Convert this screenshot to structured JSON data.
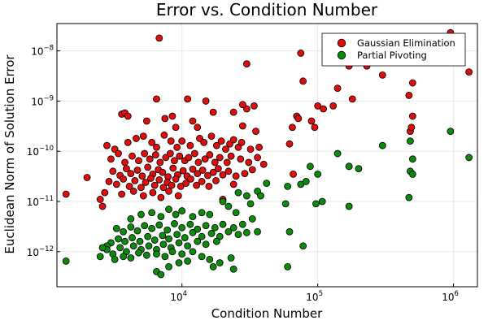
{
  "chart_data": {
    "type": "scatter",
    "title": "Error vs. Condition Number",
    "xlabel": "Condition Number",
    "ylabel": "Euclidean Norm of Solution Error",
    "xscale": "log",
    "yscale": "log",
    "xlim": [
      1200,
      1500000
    ],
    "ylim": [
      2e-13,
      3.5e-08
    ],
    "grid": true,
    "legend_position": "top-right",
    "x_ticks": [
      {
        "value": 10000,
        "base": "10",
        "exp": "4"
      },
      {
        "value": 100000,
        "base": "10",
        "exp": "5"
      },
      {
        "value": 1000000,
        "base": "10",
        "exp": "6"
      }
    ],
    "y_ticks": [
      {
        "value": 1e-12,
        "base": "10",
        "exp": "−12"
      },
      {
        "value": 1e-11,
        "base": "10",
        "exp": "−11"
      },
      {
        "value": 1e-10,
        "base": "10",
        "exp": "−10"
      },
      {
        "value": 1e-09,
        "base": "10",
        "exp": "−9"
      },
      {
        "value": 1e-08,
        "base": "10",
        "exp": "−8"
      }
    ],
    "series": [
      {
        "name": "Gaussian Elimination",
        "color": "#e00d0d",
        "points": [
          [
            6800,
            1.8e-08
          ],
          [
            30000,
            5.5e-09
          ],
          [
            75000,
            9e-09
          ],
          [
            78000,
            2.5e-09
          ],
          [
            170000,
            5e-09
          ],
          [
            230000,
            5e-09
          ],
          [
            520000,
            6e-09
          ],
          [
            950000,
            2.3e-08
          ],
          [
            1300000,
            3.8e-09
          ],
          [
            300000,
            3.3e-09
          ],
          [
            500000,
            2.3e-09
          ],
          [
            140000,
            1.8e-09
          ],
          [
            470000,
            1.3e-09
          ],
          [
            6500,
            1.1e-09
          ],
          [
            11000,
            1.1e-09
          ],
          [
            15000,
            1e-09
          ],
          [
            34000,
            8e-10
          ],
          [
            30000,
            7e-10
          ],
          [
            24000,
            6e-10
          ],
          [
            28000,
            8.5e-10
          ],
          [
            17000,
            6e-10
          ],
          [
            100000,
            8e-10
          ],
          [
            110000,
            7e-10
          ],
          [
            130000,
            8e-10
          ],
          [
            180000,
            1.1e-09
          ],
          [
            3600,
            5.5e-10
          ],
          [
            3800,
            5.8e-10
          ],
          [
            4000,
            5e-10
          ],
          [
            7500,
            4.5e-10
          ],
          [
            8500,
            5e-10
          ],
          [
            5500,
            4e-10
          ],
          [
            12000,
            4e-10
          ],
          [
            9000,
            3e-10
          ],
          [
            13000,
            3e-10
          ],
          [
            28000,
            3.2e-10
          ],
          [
            35000,
            2.5e-10
          ],
          [
            70000,
            5e-10
          ],
          [
            72000,
            4.5e-10
          ],
          [
            65000,
            3e-10
          ],
          [
            90000,
            4e-10
          ],
          [
            95000,
            3e-10
          ],
          [
            500000,
            5e-10
          ],
          [
            480000,
            2.5e-10
          ],
          [
            490000,
            3e-10
          ],
          [
            2800,
            1.3e-10
          ],
          [
            3200,
            1.1e-10
          ],
          [
            4000,
            1.5e-10
          ],
          [
            4600,
            1.8e-10
          ],
          [
            5200,
            2e-10
          ],
          [
            6000,
            1.5e-10
          ],
          [
            6500,
            1.2e-10
          ],
          [
            7400,
            2.1e-10
          ],
          [
            8300,
            1.6e-10
          ],
          [
            9200,
            1.2e-10
          ],
          [
            10000,
            1.6e-10
          ],
          [
            11500,
            1.3e-10
          ],
          [
            13500,
            1.8e-10
          ],
          [
            14500,
            1.5e-10
          ],
          [
            16500,
            2e-10
          ],
          [
            18000,
            1.3e-10
          ],
          [
            19500,
            1.6e-10
          ],
          [
            21000,
            1.1e-10
          ],
          [
            22500,
            1.4e-10
          ],
          [
            24000,
            1.7e-10
          ],
          [
            26000,
            1.2e-10
          ],
          [
            27500,
            1.5e-10
          ],
          [
            32000,
            1.1e-10
          ],
          [
            37000,
            1.2e-10
          ],
          [
            62000,
            1.4e-10
          ],
          [
            3000,
            7e-11
          ],
          [
            3400,
            9e-11
          ],
          [
            3800,
            6e-11
          ],
          [
            4300,
            8e-11
          ],
          [
            4800,
            6.5e-11
          ],
          [
            5300,
            9e-11
          ],
          [
            5800,
            7e-11
          ],
          [
            6400,
            8.5e-11
          ],
          [
            6900,
            6e-11
          ],
          [
            7600,
            7.5e-11
          ],
          [
            8200,
            9e-11
          ],
          [
            8800,
            6.5e-11
          ],
          [
            9600,
            8e-11
          ],
          [
            10500,
            6.5e-11
          ],
          [
            11200,
            7.5e-11
          ],
          [
            12400,
            9e-11
          ],
          [
            13200,
            6e-11
          ],
          [
            14800,
            7e-11
          ],
          [
            16000,
            8.5e-11
          ],
          [
            17500,
            6e-11
          ],
          [
            19000,
            7.5e-11
          ],
          [
            21500,
            6e-11
          ],
          [
            23000,
            8e-11
          ],
          [
            27000,
            7e-11
          ],
          [
            31000,
            6e-11
          ],
          [
            36000,
            7.5e-11
          ],
          [
            40000,
            5.5e-11
          ],
          [
            66000,
            3.5e-11
          ],
          [
            170000,
            5e-11
          ],
          [
            3100,
            4e-11
          ],
          [
            3500,
            3.3e-11
          ],
          [
            3900,
            4.5e-11
          ],
          [
            4200,
            3.6e-11
          ],
          [
            4700,
            4.2e-11
          ],
          [
            5100,
            3.2e-11
          ],
          [
            5600,
            4.8e-11
          ],
          [
            6100,
            3.5e-11
          ],
          [
            6700,
            4.3e-11
          ],
          [
            7200,
            3.8e-11
          ],
          [
            7900,
            3.1e-11
          ],
          [
            8600,
            4.6e-11
          ],
          [
            9300,
            3.4e-11
          ],
          [
            10200,
            4.1e-11
          ],
          [
            10900,
            3.2e-11
          ],
          [
            12000,
            4.4e-11
          ],
          [
            13000,
            3.6e-11
          ],
          [
            14200,
            4.2e-11
          ],
          [
            15500,
            3.3e-11
          ],
          [
            17000,
            3.8e-11
          ],
          [
            18500,
            4.5e-11
          ],
          [
            20000,
            3.4e-11
          ],
          [
            22000,
            4e-11
          ],
          [
            25000,
            3.2e-11
          ],
          [
            29000,
            3.6e-11
          ],
          [
            33000,
            4.3e-11
          ],
          [
            2900,
            2.5e-11
          ],
          [
            3300,
            2.2e-11
          ],
          [
            3700,
            2.8e-11
          ],
          [
            4100,
            2e-11
          ],
          [
            4500,
            2.6e-11
          ],
          [
            5000,
            1.9e-11
          ],
          [
            5400,
            2.4e-11
          ],
          [
            5900,
            2.9e-11
          ],
          [
            6300,
            2.1e-11
          ],
          [
            6800,
            2.7e-11
          ],
          [
            7300,
            1.9e-11
          ],
          [
            7800,
            2.4e-11
          ],
          [
            8400,
            2.1e-11
          ],
          [
            9000,
            2.8e-11
          ],
          [
            9800,
            2e-11
          ],
          [
            10700,
            2.3e-11
          ],
          [
            11600,
            2.8e-11
          ],
          [
            12800,
            2.1e-11
          ],
          [
            14000,
            2.5e-11
          ],
          [
            15800,
            2e-11
          ],
          [
            17800,
            2.6e-11
          ],
          [
            24000,
            2.2e-11
          ],
          [
            2700,
            1.5e-11
          ],
          [
            3600,
            1.4e-11
          ],
          [
            4400,
            1.6e-11
          ],
          [
            5200,
            1.3e-11
          ],
          [
            6100,
            1.5e-11
          ],
          [
            7000,
            1.2e-11
          ],
          [
            8000,
            1.6e-11
          ],
          [
            9400,
            1.3e-11
          ],
          [
            2000,
            3e-11
          ],
          [
            2500,
            1.1e-11
          ],
          [
            2600,
            8e-12
          ],
          [
            1400,
            1.4e-11
          ],
          [
            20000,
            1.1e-11
          ]
        ]
      },
      {
        "name": "Partial Pivoting",
        "color": "#0b8a0b",
        "points": [
          [
            950000,
            2.5e-10
          ],
          [
            1300000,
            7.5e-11
          ],
          [
            480000,
            1.6e-10
          ],
          [
            300000,
            1.3e-10
          ],
          [
            140000,
            9e-11
          ],
          [
            170000,
            5e-11
          ],
          [
            200000,
            4.5e-11
          ],
          [
            500000,
            7e-11
          ],
          [
            480000,
            4e-11
          ],
          [
            500000,
            3.5e-11
          ],
          [
            470000,
            1.2e-11
          ],
          [
            88000,
            5e-11
          ],
          [
            100000,
            3.5e-11
          ],
          [
            60000,
            2e-11
          ],
          [
            75000,
            2.2e-11
          ],
          [
            82000,
            2.5e-11
          ],
          [
            42000,
            2.3e-11
          ],
          [
            36000,
            1.6e-11
          ],
          [
            30000,
            1.3e-11
          ],
          [
            26000,
            1.5e-11
          ],
          [
            38000,
            1.3e-11
          ],
          [
            32000,
            9e-12
          ],
          [
            58000,
            9e-12
          ],
          [
            97000,
            9e-12
          ],
          [
            108000,
            1e-11
          ],
          [
            170000,
            8e-12
          ],
          [
            62000,
            2.5e-12
          ],
          [
            78000,
            1.3e-12
          ],
          [
            60000,
            5e-13
          ],
          [
            20000,
            1e-11
          ],
          [
            22000,
            8e-12
          ],
          [
            25000,
            6e-12
          ],
          [
            14000,
            6e-12
          ],
          [
            16000,
            5.5e-12
          ],
          [
            12000,
            5e-12
          ],
          [
            10000,
            6.5e-12
          ],
          [
            9000,
            5.5e-12
          ],
          [
            8000,
            7e-12
          ],
          [
            7000,
            5e-12
          ],
          [
            6000,
            6e-12
          ],
          [
            5000,
            5.5e-12
          ],
          [
            4200,
            4.5e-12
          ],
          [
            33000,
            4.5e-12
          ],
          [
            28000,
            3.5e-12
          ],
          [
            24000,
            3e-12
          ],
          [
            20000,
            3.5e-12
          ],
          [
            17500,
            3e-12
          ],
          [
            15000,
            3.3e-12
          ],
          [
            13000,
            2.8e-12
          ],
          [
            11500,
            3.5e-12
          ],
          [
            10000,
            3e-12
          ],
          [
            8800,
            3.6e-12
          ],
          [
            7800,
            2.7e-12
          ],
          [
            6800,
            3.4e-12
          ],
          [
            6000,
            2.9e-12
          ],
          [
            5300,
            3.3e-12
          ],
          [
            4700,
            2.6e-12
          ],
          [
            4200,
            3.1e-12
          ],
          [
            3700,
            2.5e-12
          ],
          [
            3300,
            2.9e-12
          ],
          [
            36000,
            2.5e-12
          ],
          [
            30000,
            2.4e-12
          ],
          [
            26000,
            2.2e-12
          ],
          [
            22000,
            2.5e-12
          ],
          [
            19000,
            2e-12
          ],
          [
            16500,
            2.3e-12
          ],
          [
            14000,
            2e-12
          ],
          [
            12000,
            2.4e-12
          ],
          [
            10500,
            1.9e-12
          ],
          [
            9200,
            2.2e-12
          ],
          [
            8000,
            1.8e-12
          ],
          [
            7200,
            2.1e-12
          ],
          [
            6300,
            1.7e-12
          ],
          [
            5600,
            2e-12
          ],
          [
            4900,
            1.6e-12
          ],
          [
            4300,
            1.9e-12
          ],
          [
            3800,
            1.6e-12
          ],
          [
            3400,
            1.8e-12
          ],
          [
            3000,
            1.5e-12
          ],
          [
            2800,
            1.3e-12
          ],
          [
            18000,
            1.6e-12
          ],
          [
            15000,
            1.4e-12
          ],
          [
            13000,
            1.6e-12
          ],
          [
            11000,
            1.3e-12
          ],
          [
            9500,
            1.5e-12
          ],
          [
            8300,
            1.2e-12
          ],
          [
            7300,
            1.4e-12
          ],
          [
            6500,
            1.1e-12
          ],
          [
            5700,
            1.3e-12
          ],
          [
            5000,
            1.1e-12
          ],
          [
            4400,
            1.3e-12
          ],
          [
            3900,
            1e-12
          ],
          [
            3500,
            1.2e-12
          ],
          [
            3100,
            9e-13
          ],
          [
            2800,
            1.1e-12
          ],
          [
            12000,
            1e-12
          ],
          [
            10000,
            9e-13
          ],
          [
            8500,
            1e-12
          ],
          [
            7500,
            8e-13
          ],
          [
            6500,
            9e-13
          ],
          [
            5500,
            8.5e-13
          ],
          [
            4800,
            9.5e-13
          ],
          [
            4200,
            7.5e-13
          ],
          [
            3700,
            8e-13
          ],
          [
            3200,
            7e-13
          ],
          [
            2500,
            8e-13
          ],
          [
            14000,
            8e-13
          ],
          [
            16000,
            7e-13
          ],
          [
            19000,
            6e-13
          ],
          [
            23000,
            7.5e-13
          ],
          [
            17000,
            5e-13
          ],
          [
            24000,
            4.5e-13
          ],
          [
            8000,
            5e-13
          ],
          [
            6500,
            4e-13
          ],
          [
            7000,
            3.5e-13
          ],
          [
            9500,
            6e-13
          ],
          [
            11000,
            6.5e-13
          ],
          [
            1400,
            6.5e-13
          ],
          [
            2600,
            1.2e-12
          ]
        ]
      }
    ]
  }
}
